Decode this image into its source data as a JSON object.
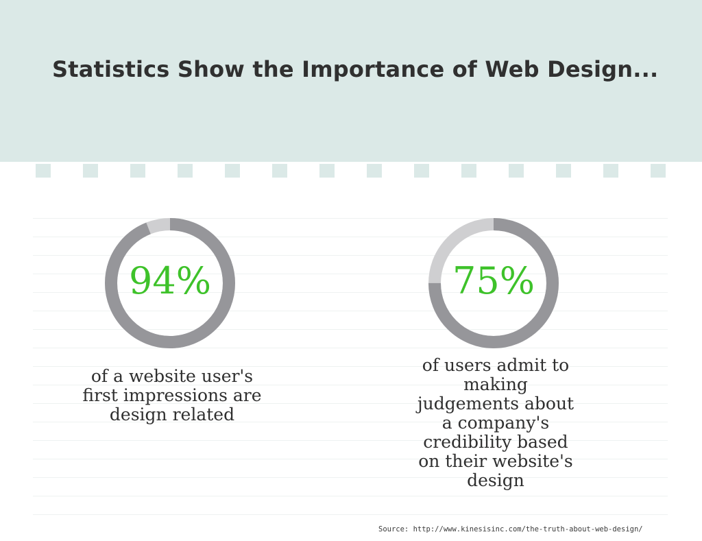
{
  "title": "Statistics Show the Importance of Web Design...",
  "stats": [
    {
      "value_label": "94%",
      "percent": 94,
      "caption_lines": [
        "of a website user's",
        "first impressions are",
        "design related"
      ]
    },
    {
      "value_label": "75%",
      "percent": 75,
      "caption_lines": [
        "of users admit to",
        "making",
        "judgements about",
        "a company's",
        "credibility based",
        "on their website's",
        "design"
      ]
    }
  ],
  "source": "Source: http://www.kinesisinc.com/the-truth-about-web-design/",
  "colors": {
    "header_band": "#dbe9e7",
    "ring_dark": "#96969a",
    "ring_light": "#cfcfd1",
    "percent_text": "#3ec22a"
  }
}
